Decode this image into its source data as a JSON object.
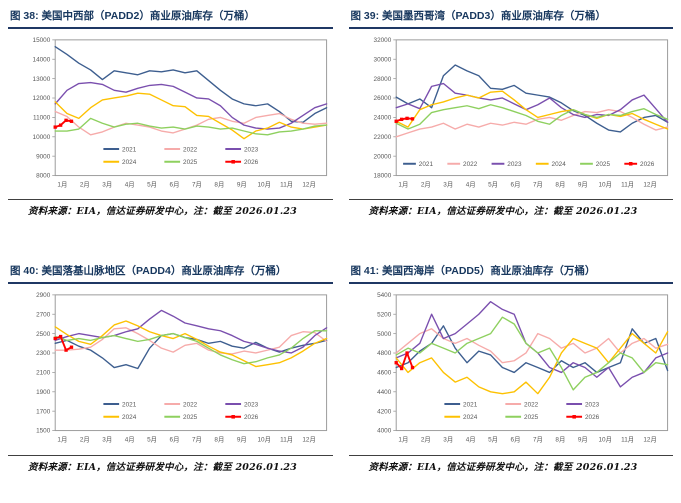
{
  "page": {
    "background": "#ffffff"
  },
  "chart_data": [
    {
      "type": "line",
      "title": "图 38:  美国中西部（PADD2）商业原油库存（万桶）",
      "source": "资料来源：EIA，信达证券研发中心，注：截至 2026.01.23",
      "ylim": [
        8000,
        15000
      ],
      "ytick_step": 1000,
      "ytick_labels": [
        "8000",
        "9000",
        "10000",
        "11000",
        "12000",
        "13000",
        "14000",
        "15000"
      ],
      "x_labels": [
        "1月",
        "2月",
        "3月",
        "4月",
        "5月",
        "6月",
        "7月",
        "8月",
        "9月",
        "10月",
        "11月",
        "12月"
      ],
      "legend_rows": 2,
      "legend_position": "inside-bottom",
      "grid": false,
      "series": [
        {
          "name": "2021",
          "color": "#3d5e8f",
          "span": 1,
          "marker": false,
          "values": [
            14650,
            14250,
            13800,
            13450,
            12950,
            13400,
            13300,
            13200,
            13400,
            13350,
            13450,
            13300,
            13400,
            12900,
            12400,
            11950,
            11700,
            11600,
            11700,
            11300,
            10800,
            10750,
            11200,
            11500
          ]
        },
        {
          "name": "2022",
          "color": "#f6abaa",
          "span": 1,
          "marker": false,
          "values": [
            11300,
            11050,
            10500,
            10100,
            10250,
            10500,
            10700,
            10600,
            10500,
            10300,
            10200,
            10400,
            10600,
            10900,
            11000,
            10800,
            10700,
            11000,
            11100,
            11200,
            10900,
            10700,
            10650,
            10700
          ]
        },
        {
          "name": "2023",
          "color": "#7a4fae",
          "span": 1,
          "marker": false,
          "values": [
            11700,
            12400,
            12750,
            12800,
            12700,
            12400,
            12300,
            12500,
            12650,
            12700,
            12600,
            12300,
            12000,
            11950,
            11600,
            11000,
            10600,
            10450,
            10400,
            10450,
            10700,
            11100,
            11500,
            11700
          ]
        },
        {
          "name": "2024",
          "color": "#fdc101",
          "span": 1,
          "marker": false,
          "values": [
            11800,
            11200,
            10950,
            11500,
            11900,
            12000,
            12100,
            12250,
            12200,
            11900,
            11600,
            11550,
            11100,
            11050,
            10700,
            10350,
            9900,
            10300,
            10450,
            10750,
            10500,
            10400,
            10500,
            10600
          ]
        },
        {
          "name": "2025",
          "color": "#8ed05f",
          "span": 1,
          "marker": false,
          "values": [
            10300,
            10300,
            10400,
            10950,
            10700,
            10500,
            10650,
            10700,
            10550,
            10450,
            10500,
            10400,
            10550,
            10500,
            10400,
            10450,
            10300,
            10150,
            10100,
            10250,
            10300,
            10400,
            10550,
            10600
          ]
        },
        {
          "name": "2026",
          "color": "#fe0000",
          "span": 0.06,
          "marker": true,
          "values": [
            10500,
            10600,
            10850,
            10800
          ]
        }
      ]
    },
    {
      "type": "line",
      "title": "图 39:  美国墨西哥湾（PADD3）商业原油库存（万桶）",
      "source": "资料来源：EIA，信达证券研发中心，注：截至 2026.01.23",
      "ylim": [
        18000,
        32000
      ],
      "ytick_step": 2000,
      "ytick_labels": [
        "18000",
        "20000",
        "22000",
        "24000",
        "26000",
        "28000",
        "30000",
        "32000"
      ],
      "x_labels": [
        "1月",
        "2月",
        "3月",
        "4月",
        "5月",
        "6月",
        "7月",
        "8月",
        "9月",
        "10月",
        "11月",
        "12月"
      ],
      "legend_rows": 1,
      "legend_position": "inside-bottom",
      "grid": false,
      "series": [
        {
          "name": "2021",
          "color": "#3d5e8f",
          "span": 1,
          "marker": false,
          "values": [
            26100,
            25400,
            25900,
            25000,
            28300,
            29400,
            28800,
            28300,
            27000,
            26900,
            27300,
            26500,
            26300,
            26100,
            25500,
            24700,
            24200,
            23400,
            22700,
            22500,
            23400,
            24000,
            24200,
            23500
          ]
        },
        {
          "name": "2022",
          "color": "#f6abaa",
          "span": 1,
          "marker": false,
          "values": [
            22000,
            22400,
            22800,
            23000,
            23400,
            22800,
            23300,
            23000,
            23400,
            23200,
            23500,
            23300,
            23800,
            24000,
            23700,
            24200,
            24600,
            24500,
            24800,
            24600,
            24000,
            23300,
            22700,
            23000
          ]
        },
        {
          "name": "2023",
          "color": "#7a4fae",
          "span": 1,
          "marker": false,
          "values": [
            25000,
            25400,
            24900,
            27200,
            27500,
            26500,
            26300,
            26000,
            25800,
            26000,
            25400,
            24800,
            25300,
            26000,
            25000,
            24300,
            24000,
            24300,
            24200,
            24800,
            25800,
            26300,
            24900,
            23500
          ]
        },
        {
          "name": "2024",
          "color": "#fdc101",
          "span": 1,
          "marker": false,
          "values": [
            23600,
            23000,
            24800,
            25300,
            25600,
            26000,
            26300,
            26000,
            26600,
            26700,
            25800,
            24800,
            24000,
            24300,
            24600,
            24800,
            24300,
            23900,
            24300,
            24100,
            24400,
            23800,
            23300,
            22800
          ]
        },
        {
          "name": "2025",
          "color": "#8ed05f",
          "span": 1,
          "marker": false,
          "values": [
            23400,
            22800,
            23300,
            24500,
            24800,
            25000,
            25200,
            24900,
            25300,
            25000,
            24600,
            24200,
            23600,
            23300,
            24200,
            24800,
            24300,
            24000,
            24300,
            24200,
            24600,
            24900,
            24300,
            23800
          ]
        },
        {
          "name": "2026",
          "color": "#fe0000",
          "span": 0.06,
          "marker": true,
          "values": [
            23600,
            23800,
            23900,
            23850
          ]
        }
      ]
    },
    {
      "type": "line",
      "title": "图 40:  美国落基山脉地区（PADD4）商业原油库存（万桶）",
      "source": "资料来源：EIA，信达证券研发中心，注：截至 2026.01.23",
      "ylim": [
        1500,
        2900
      ],
      "ytick_step": 200,
      "ytick_labels": [
        "1500",
        "1700",
        "1900",
        "2100",
        "2300",
        "2500",
        "2700",
        "2900"
      ],
      "x_labels": [
        "1月",
        "2月",
        "3月",
        "4月",
        "5月",
        "6月",
        "7月",
        "8月",
        "9月",
        "10月",
        "11月",
        "12月"
      ],
      "legend_rows": 2,
      "legend_position": "inside-bottom",
      "grid": false,
      "series": [
        {
          "name": "2021",
          "color": "#3d5e8f",
          "span": 1,
          "marker": false,
          "values": [
            2400,
            2430,
            2370,
            2330,
            2250,
            2150,
            2180,
            2140,
            2350,
            2480,
            2500,
            2460,
            2440,
            2400,
            2420,
            2370,
            2350,
            2410,
            2350,
            2310,
            2350,
            2380,
            2400,
            2430
          ]
        },
        {
          "name": "2022",
          "color": "#f6abaa",
          "span": 1,
          "marker": false,
          "values": [
            2330,
            2330,
            2340,
            2360,
            2440,
            2550,
            2560,
            2500,
            2430,
            2350,
            2310,
            2380,
            2400,
            2330,
            2300,
            2290,
            2320,
            2300,
            2330,
            2360,
            2480,
            2520,
            2510,
            2420
          ]
        },
        {
          "name": "2023",
          "color": "#7a4fae",
          "span": 1,
          "marker": false,
          "values": [
            2430,
            2470,
            2500,
            2480,
            2460,
            2480,
            2520,
            2550,
            2650,
            2740,
            2680,
            2610,
            2580,
            2550,
            2530,
            2480,
            2420,
            2390,
            2350,
            2320,
            2300,
            2360,
            2480,
            2560
          ]
        },
        {
          "name": "2024",
          "color": "#fdc101",
          "span": 1,
          "marker": false,
          "values": [
            2570,
            2490,
            2420,
            2390,
            2480,
            2590,
            2630,
            2580,
            2520,
            2480,
            2450,
            2500,
            2440,
            2370,
            2310,
            2280,
            2220,
            2160,
            2180,
            2200,
            2250,
            2320,
            2400,
            2450
          ]
        },
        {
          "name": "2025",
          "color": "#8ed05f",
          "span": 1,
          "marker": false,
          "values": [
            2470,
            2430,
            2450,
            2430,
            2460,
            2480,
            2450,
            2420,
            2440,
            2480,
            2500,
            2460,
            2420,
            2350,
            2280,
            2230,
            2190,
            2210,
            2250,
            2280,
            2350,
            2450,
            2530,
            2530
          ]
        },
        {
          "name": "2026",
          "color": "#fe0000",
          "span": 0.06,
          "marker": true,
          "values": [
            2450,
            2470,
            2330,
            2360
          ]
        }
      ]
    },
    {
      "type": "line",
      "title": "图 41:  美国西海岸（PADD5）商业原油库存（万桶）",
      "source": "资料来源：EIA，信达证券研发中心，注：截至 2026.01.23",
      "ylim": [
        4000,
        5400
      ],
      "ytick_step": 200,
      "ytick_labels": [
        "4000",
        "4200",
        "4400",
        "4600",
        "4800",
        "5000",
        "5200",
        "5400"
      ],
      "x_labels": [
        "1月",
        "2月",
        "3月",
        "4月",
        "5月",
        "6月",
        "7月",
        "8月",
        "9月",
        "10月",
        "11月",
        "12月"
      ],
      "legend_rows": 2,
      "legend_position": "inside-bottom",
      "grid": false,
      "series": [
        {
          "name": "2021",
          "color": "#3d5e8f",
          "span": 1,
          "marker": false,
          "values": [
            4650,
            4700,
            4820,
            4900,
            5080,
            4850,
            4700,
            4820,
            4780,
            4650,
            4600,
            4700,
            4650,
            4600,
            4720,
            4650,
            4700,
            4600,
            4650,
            4700,
            5050,
            4900,
            4950,
            4620
          ]
        },
        {
          "name": "2022",
          "color": "#f6abaa",
          "span": 1,
          "marker": false,
          "values": [
            4800,
            4900,
            5000,
            5050,
            4950,
            4900,
            4950,
            4880,
            4820,
            4700,
            4720,
            4800,
            5000,
            4950,
            4850,
            4900,
            4800,
            4850,
            4950,
            4800,
            4900,
            4950,
            4850,
            4890
          ]
        },
        {
          "name": "2023",
          "color": "#7a4fae",
          "span": 1,
          "marker": false,
          "values": [
            4750,
            4800,
            4900,
            5200,
            4950,
            5000,
            5100,
            5200,
            5330,
            5250,
            5200,
            4900,
            4800,
            4650,
            4600,
            4700,
            4650,
            4550,
            4650,
            4450,
            4550,
            4600,
            4750,
            4800
          ]
        },
        {
          "name": "2024",
          "color": "#fdc101",
          "span": 1,
          "marker": false,
          "values": [
            4750,
            4600,
            4700,
            4750,
            4600,
            4500,
            4550,
            4450,
            4400,
            4380,
            4400,
            4500,
            4380,
            4550,
            4800,
            4950,
            4900,
            4850,
            4700,
            4850,
            5000,
            4900,
            4800,
            5020
          ]
        },
        {
          "name": "2025",
          "color": "#8ed05f",
          "span": 1,
          "marker": false,
          "values": [
            4780,
            4850,
            4800,
            4900,
            4850,
            4800,
            4900,
            4950,
            5000,
            5170,
            5100,
            4900,
            4800,
            4850,
            4650,
            4420,
            4550,
            4600,
            4700,
            4800,
            4750,
            4600,
            4700,
            4680
          ]
        },
        {
          "name": "2026",
          "color": "#fe0000",
          "span": 0.06,
          "marker": true,
          "values": [
            4700,
            4640,
            4800,
            4650
          ]
        }
      ]
    }
  ]
}
